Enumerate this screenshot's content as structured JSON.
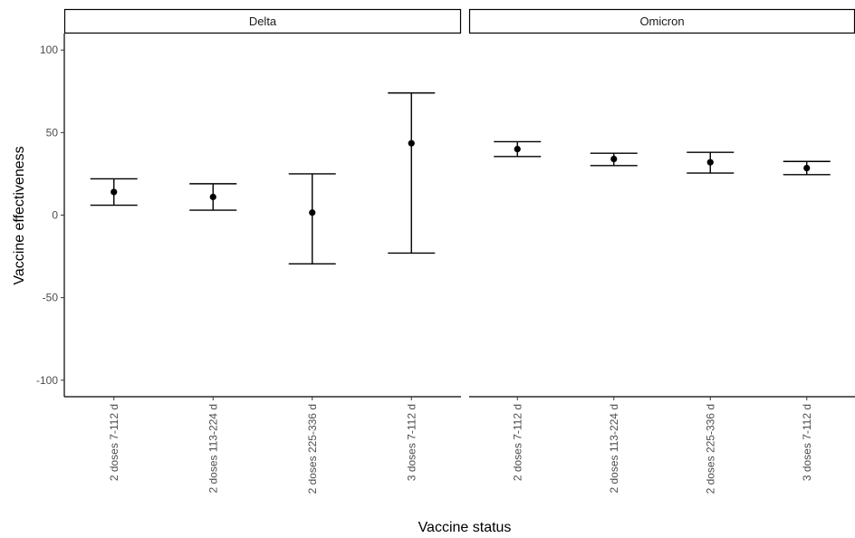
{
  "chart_data": {
    "type": "errorbar",
    "xlabel": "Vaccine status",
    "ylabel": "Vaccine effectiveness",
    "ylim": [
      -110,
      110
    ],
    "yticks": [
      100,
      50,
      0,
      -50,
      -100
    ],
    "grid": false,
    "categories": [
      "2 doses 7-112 d",
      "2 doses 113-224 d",
      "2 doses 225-336 d",
      "3 doses 7-112 d"
    ],
    "facets": [
      {
        "name": "Delta",
        "points": [
          {
            "category": "2 doses 7-112 d",
            "estimate": 14,
            "lower": 6,
            "upper": 22
          },
          {
            "category": "2 doses 113-224 d",
            "estimate": 11,
            "lower": 3,
            "upper": 19
          },
          {
            "category": "2 doses 225-336 d",
            "estimate": 1.5,
            "lower": -29.5,
            "upper": 25
          },
          {
            "category": "3 doses 7-112 d",
            "estimate": 43.5,
            "lower": -23,
            "upper": 74
          }
        ]
      },
      {
        "name": "Omicron",
        "points": [
          {
            "category": "2 doses 7-112 d",
            "estimate": 40,
            "lower": 35.5,
            "upper": 44.5
          },
          {
            "category": "2 doses 113-224 d",
            "estimate": 34,
            "lower": 30,
            "upper": 37.5
          },
          {
            "category": "2 doses 225-336 d",
            "estimate": 32,
            "lower": 25.5,
            "upper": 38
          },
          {
            "category": "3 doses 7-112 d",
            "estimate": 28.5,
            "lower": 24.5,
            "upper": 32.5
          }
        ]
      }
    ]
  }
}
